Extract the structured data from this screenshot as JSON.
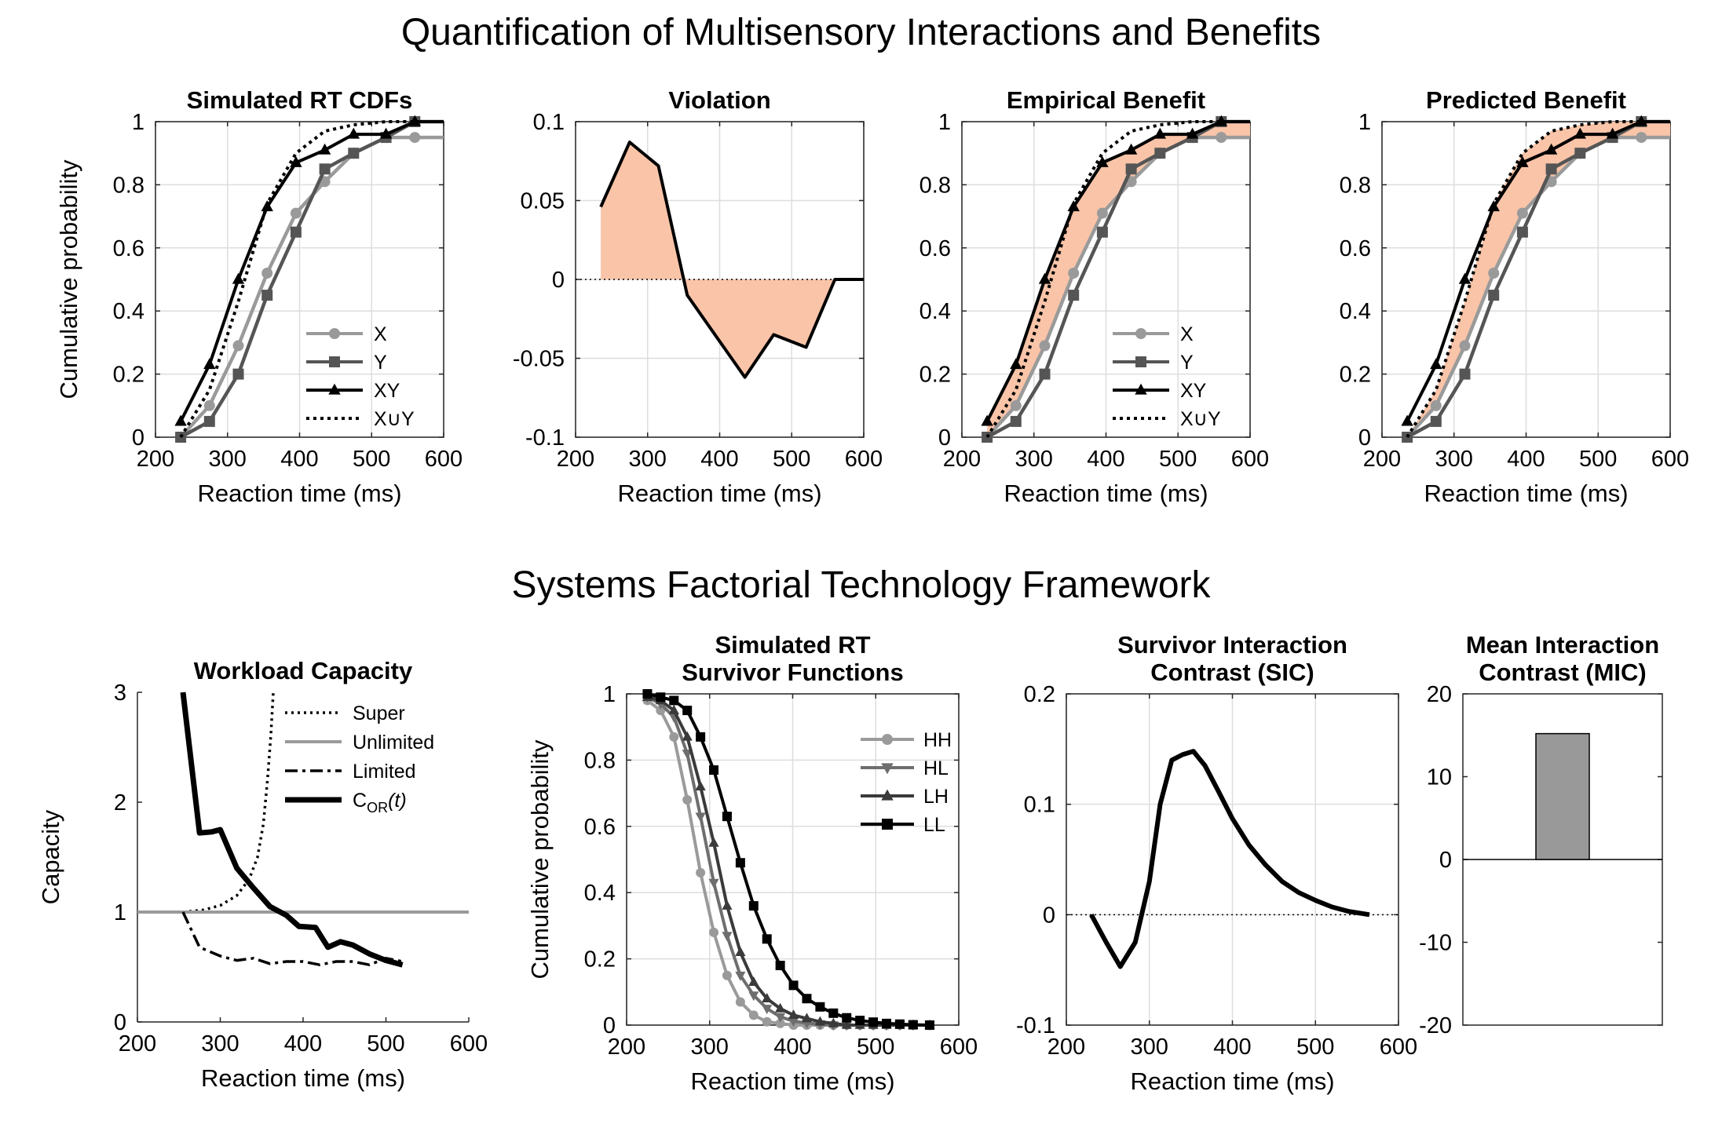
{
  "figure": {
    "title_top": "Quantification of Multisensory Interactions and Benefits",
    "title_bottom": "Systems Factorial Technology Framework"
  },
  "colors": {
    "X": "#9a9a9a",
    "Y": "#555555",
    "XY": "#000000",
    "union": "#000000",
    "shade": "#f9c4a8",
    "grid": "#dddddd",
    "HH": "#9a9a9a",
    "HL": "#6e6e6e",
    "LH": "#3a3a3a",
    "LL": "#000000",
    "bar": "#999999"
  },
  "chart_data": [
    {
      "id": "cdf",
      "type": "line",
      "title": "Simulated RT CDFs",
      "xlabel": "Reaction time (ms)",
      "ylabel": "Cumulative probability",
      "xlim": [
        200,
        600
      ],
      "ylim": [
        0,
        1
      ],
      "xticks": [
        200,
        300,
        400,
        500,
        600
      ],
      "yticks": [
        0,
        0.2,
        0.4,
        0.6,
        0.8,
        1
      ],
      "ytick_labels": [
        "0",
        "0.2",
        "0.4",
        "0.6",
        "0.8",
        "1"
      ],
      "grid": true,
      "legend": "bottom-right",
      "series": [
        {
          "name": "X",
          "marker": "circle",
          "x": [
            235,
            275,
            315,
            355,
            395,
            435,
            475,
            520,
            560,
            600
          ],
          "y": [
            0,
            0.1,
            0.29,
            0.52,
            0.71,
            0.81,
            0.9,
            0.95,
            0.95,
            0.95
          ]
        },
        {
          "name": "Y",
          "marker": "square",
          "x": [
            235,
            275,
            315,
            355,
            395,
            435,
            475,
            520,
            560,
            600
          ],
          "y": [
            0,
            0.05,
            0.2,
            0.45,
            0.65,
            0.85,
            0.9,
            0.95,
            1.0,
            1.0
          ]
        },
        {
          "name": "XY",
          "marker": "triangle",
          "x": [
            235,
            275,
            315,
            355,
            395,
            435,
            475,
            520,
            560,
            600
          ],
          "y": [
            0.05,
            0.23,
            0.5,
            0.73,
            0.87,
            0.91,
            0.96,
            0.96,
            1.0,
            1.0
          ]
        },
        {
          "name": "X∪Y",
          "marker": "none",
          "dash": "dotted",
          "x": [
            235,
            275,
            315,
            355,
            395,
            435,
            475,
            520,
            560,
            600
          ],
          "y": [
            0,
            0.15,
            0.43,
            0.74,
            0.9,
            0.97,
            0.99,
            1.0,
            1.0,
            1.0
          ]
        }
      ]
    },
    {
      "id": "violation",
      "type": "area",
      "title": "Violation",
      "xlabel": "Reaction time (ms)",
      "ylabel": "",
      "xlim": [
        200,
        600
      ],
      "ylim": [
        -0.1,
        0.1
      ],
      "xticks": [
        200,
        300,
        400,
        500,
        600
      ],
      "yticks": [
        -0.1,
        -0.05,
        0,
        0.05,
        0.1
      ],
      "ytick_labels": [
        "-0.1",
        "-0.05",
        "0",
        "0.05",
        "0.1"
      ],
      "grid": true,
      "x": [
        235,
        275,
        315,
        355,
        395,
        435,
        475,
        520,
        560,
        600
      ],
      "y": [
        0.046,
        0.087,
        0.072,
        -0.01,
        -0.036,
        -0.062,
        -0.035,
        -0.043,
        0,
        0
      ]
    },
    {
      "id": "empirical",
      "type": "line",
      "title": "Empirical Benefit",
      "xlabel": "Reaction time (ms)",
      "ylabel": "",
      "xlim": [
        200,
        600
      ],
      "ylim": [
        0,
        1
      ],
      "xticks": [
        200,
        300,
        400,
        500,
        600
      ],
      "yticks": [
        0,
        0.2,
        0.4,
        0.6,
        0.8,
        1
      ],
      "ytick_labels": [
        "0",
        "0.2",
        "0.4",
        "0.6",
        "0.8",
        "1"
      ],
      "grid": true,
      "legend": "bottom-right",
      "shade_between": [
        "XY",
        "X"
      ],
      "series": [
        {
          "name": "X",
          "marker": "circle",
          "x": [
            235,
            275,
            315,
            355,
            395,
            435,
            475,
            520,
            560,
            600
          ],
          "y": [
            0,
            0.1,
            0.29,
            0.52,
            0.71,
            0.81,
            0.9,
            0.95,
            0.95,
            0.95
          ]
        },
        {
          "name": "Y",
          "marker": "square",
          "x": [
            235,
            275,
            315,
            355,
            395,
            435,
            475,
            520,
            560,
            600
          ],
          "y": [
            0,
            0.05,
            0.2,
            0.45,
            0.65,
            0.85,
            0.9,
            0.95,
            1.0,
            1.0
          ]
        },
        {
          "name": "XY",
          "marker": "triangle",
          "x": [
            235,
            275,
            315,
            355,
            395,
            435,
            475,
            520,
            560,
            600
          ],
          "y": [
            0.05,
            0.23,
            0.5,
            0.73,
            0.87,
            0.91,
            0.96,
            0.96,
            1.0,
            1.0
          ]
        },
        {
          "name": "X∪Y",
          "marker": "none",
          "dash": "dotted",
          "x": [
            235,
            275,
            315,
            355,
            395,
            435,
            475,
            520,
            560,
            600
          ],
          "y": [
            0,
            0.15,
            0.43,
            0.74,
            0.9,
            0.97,
            0.99,
            1.0,
            1.0,
            1.0
          ]
        }
      ]
    },
    {
      "id": "predicted",
      "type": "line",
      "title": "Predicted Benefit",
      "xlabel": "Reaction time (ms)",
      "ylabel": "",
      "xlim": [
        200,
        600
      ],
      "ylim": [
        0,
        1
      ],
      "xticks": [
        200,
        300,
        400,
        500,
        600
      ],
      "yticks": [
        0,
        0.2,
        0.4,
        0.6,
        0.8,
        1
      ],
      "ytick_labels": [
        "0",
        "0.2",
        "0.4",
        "0.6",
        "0.8",
        "1"
      ],
      "grid": true,
      "shade_between": [
        "X∪Y",
        "X"
      ],
      "series": [
        {
          "name": "X",
          "marker": "circle",
          "x": [
            235,
            275,
            315,
            355,
            395,
            435,
            475,
            520,
            560,
            600
          ],
          "y": [
            0,
            0.1,
            0.29,
            0.52,
            0.71,
            0.81,
            0.9,
            0.95,
            0.95,
            0.95
          ]
        },
        {
          "name": "Y",
          "marker": "square",
          "x": [
            235,
            275,
            315,
            355,
            395,
            435,
            475,
            520,
            560,
            600
          ],
          "y": [
            0,
            0.05,
            0.2,
            0.45,
            0.65,
            0.85,
            0.9,
            0.95,
            1.0,
            1.0
          ]
        },
        {
          "name": "XY",
          "marker": "triangle",
          "x": [
            235,
            275,
            315,
            355,
            395,
            435,
            475,
            520,
            560,
            600
          ],
          "y": [
            0.05,
            0.23,
            0.5,
            0.73,
            0.87,
            0.91,
            0.96,
            0.96,
            1.0,
            1.0
          ]
        },
        {
          "name": "X∪Y",
          "marker": "none",
          "dash": "dotted",
          "x": [
            235,
            275,
            315,
            355,
            395,
            435,
            475,
            520,
            560,
            600
          ],
          "y": [
            0,
            0.15,
            0.43,
            0.74,
            0.9,
            0.97,
            0.99,
            1.0,
            1.0,
            1.0
          ]
        }
      ]
    },
    {
      "id": "capacity",
      "type": "line",
      "title": "Workload Capacity",
      "xlabel": "Reaction time (ms)",
      "ylabel": "Capacity",
      "xlim": [
        200,
        600
      ],
      "ylim": [
        0,
        3
      ],
      "xticks": [
        200,
        300,
        400,
        500,
        600
      ],
      "yticks": [
        0,
        1,
        2,
        3
      ],
      "ytick_labels": [
        "0",
        "1",
        "2",
        "3"
      ],
      "grid": false,
      "legend": "top-right",
      "series": [
        {
          "name": "Super",
          "dash": "dotted",
          "x": [
            255,
            280,
            300,
            320,
            335,
            345,
            352,
            357,
            361,
            364
          ],
          "y": [
            1.0,
            1.02,
            1.06,
            1.15,
            1.3,
            1.5,
            1.8,
            2.2,
            2.6,
            3.0
          ]
        },
        {
          "name": "Unlimited",
          "dash": "solid-gray",
          "x": [
            200,
            600
          ],
          "y": [
            1,
            1
          ]
        },
        {
          "name": "Limited",
          "dash": "dashdot",
          "x": [
            255,
            275,
            300,
            320,
            340,
            360,
            380,
            400,
            420,
            440,
            460,
            480,
            500,
            520
          ],
          "y": [
            1.0,
            0.68,
            0.6,
            0.56,
            0.58,
            0.53,
            0.55,
            0.55,
            0.52,
            0.55,
            0.55,
            0.52,
            0.58,
            0.55
          ]
        },
        {
          "name": "C_OR(t)",
          "dash": "thick",
          "x": [
            255,
            275,
            290,
            300,
            320,
            340,
            360,
            380,
            395,
            415,
            430,
            445,
            460,
            480,
            500,
            520
          ],
          "y": [
            3.0,
            1.72,
            1.73,
            1.75,
            1.4,
            1.22,
            1.05,
            0.97,
            0.87,
            0.86,
            0.68,
            0.73,
            0.7,
            0.62,
            0.56,
            0.52
          ]
        }
      ],
      "legend_labels": {
        "super": "Super",
        "unlimited": "Unlimited",
        "limited": "Limited",
        "cor_main": "C",
        "cor_sub": "OR",
        "cor_arg": "(t)"
      }
    },
    {
      "id": "survivor",
      "type": "line",
      "title_line1": "Simulated RT",
      "title_line2": "Survivor Functions",
      "xlabel": "Reaction time (ms)",
      "ylabel": "Cumulative probability",
      "xlim": [
        200,
        600
      ],
      "ylim": [
        0,
        1
      ],
      "xticks": [
        200,
        300,
        400,
        500,
        600
      ],
      "yticks": [
        0,
        0.2,
        0.4,
        0.6,
        0.8,
        1
      ],
      "ytick_labels": [
        "0",
        "0.2",
        "0.4",
        "0.6",
        "0.8",
        "1"
      ],
      "grid": true,
      "legend": "top-right",
      "series": [
        {
          "name": "HH",
          "marker": "circle",
          "x": [
            225,
            241,
            257,
            273,
            289,
            305,
            321,
            337,
            353,
            369,
            385,
            401,
            417,
            433,
            449,
            465,
            481,
            497,
            513,
            529,
            545,
            565
          ],
          "y": [
            0.98,
            0.95,
            0.87,
            0.68,
            0.46,
            0.28,
            0.15,
            0.07,
            0.03,
            0.01,
            0.005,
            0,
            0,
            0,
            0,
            0,
            0,
            0,
            0,
            0,
            0,
            0
          ]
        },
        {
          "name": "HL",
          "marker": "triangle-down",
          "x": [
            225,
            241,
            257,
            273,
            289,
            305,
            321,
            337,
            353,
            369,
            385,
            401,
            417,
            433,
            449,
            465,
            481,
            497,
            513,
            529,
            545,
            565
          ],
          "y": [
            0.99,
            0.97,
            0.93,
            0.82,
            0.63,
            0.43,
            0.27,
            0.15,
            0.09,
            0.05,
            0.025,
            0.012,
            0.006,
            0.003,
            0,
            0,
            0,
            0,
            0,
            0,
            0,
            0
          ]
        },
        {
          "name": "LH",
          "marker": "triangle",
          "x": [
            225,
            241,
            257,
            273,
            289,
            305,
            321,
            337,
            353,
            369,
            385,
            401,
            417,
            433,
            449,
            465,
            481,
            497,
            513,
            529,
            545,
            565
          ],
          "y": [
            0.99,
            0.98,
            0.95,
            0.87,
            0.72,
            0.55,
            0.36,
            0.22,
            0.13,
            0.08,
            0.05,
            0.03,
            0.02,
            0.01,
            0.005,
            0,
            0,
            0,
            0,
            0,
            0,
            0
          ]
        },
        {
          "name": "LL",
          "marker": "square",
          "x": [
            225,
            241,
            257,
            273,
            289,
            305,
            321,
            337,
            353,
            369,
            385,
            401,
            417,
            433,
            449,
            465,
            481,
            497,
            513,
            529,
            545,
            565
          ],
          "y": [
            1.0,
            0.99,
            0.98,
            0.95,
            0.87,
            0.77,
            0.63,
            0.49,
            0.36,
            0.26,
            0.18,
            0.12,
            0.08,
            0.055,
            0.036,
            0.022,
            0.014,
            0.009,
            0.005,
            0.003,
            0.001,
            0
          ]
        }
      ]
    },
    {
      "id": "sic",
      "type": "line",
      "title_line1": "Survivor Interaction",
      "title_line2": "Contrast (SIC)",
      "xlabel": "Reaction time (ms)",
      "ylabel": "",
      "xlim": [
        200,
        600
      ],
      "ylim": [
        -0.1,
        0.2
      ],
      "xticks": [
        200,
        300,
        400,
        500,
        600
      ],
      "yticks": [
        -0.1,
        0,
        0.1,
        0.2
      ],
      "ytick_labels": [
        "-0.1",
        "0",
        "0.1",
        "0.2"
      ],
      "grid": true,
      "x": [
        230,
        248,
        265,
        283,
        300,
        313,
        327,
        340,
        353,
        367,
        383,
        400,
        420,
        440,
        460,
        480,
        500,
        520,
        540,
        565
      ],
      "y": [
        0,
        -0.025,
        -0.047,
        -0.025,
        0.03,
        0.1,
        0.14,
        0.145,
        0.148,
        0.135,
        0.112,
        0.087,
        0.063,
        0.045,
        0.03,
        0.02,
        0.013,
        0.007,
        0.003,
        0
      ]
    },
    {
      "id": "mic",
      "type": "bar",
      "title_line1": "Mean Interaction",
      "title_line2": "Contrast (MIC)",
      "xlabel": "",
      "ylabel": "",
      "ylim": [
        -20,
        20
      ],
      "yticks": [
        -20,
        -10,
        0,
        10,
        20
      ],
      "ytick_labels": [
        "-20",
        "-10",
        "0",
        "10",
        "20"
      ],
      "grid": false,
      "categories": [
        ""
      ],
      "values": [
        15.2
      ]
    }
  ]
}
